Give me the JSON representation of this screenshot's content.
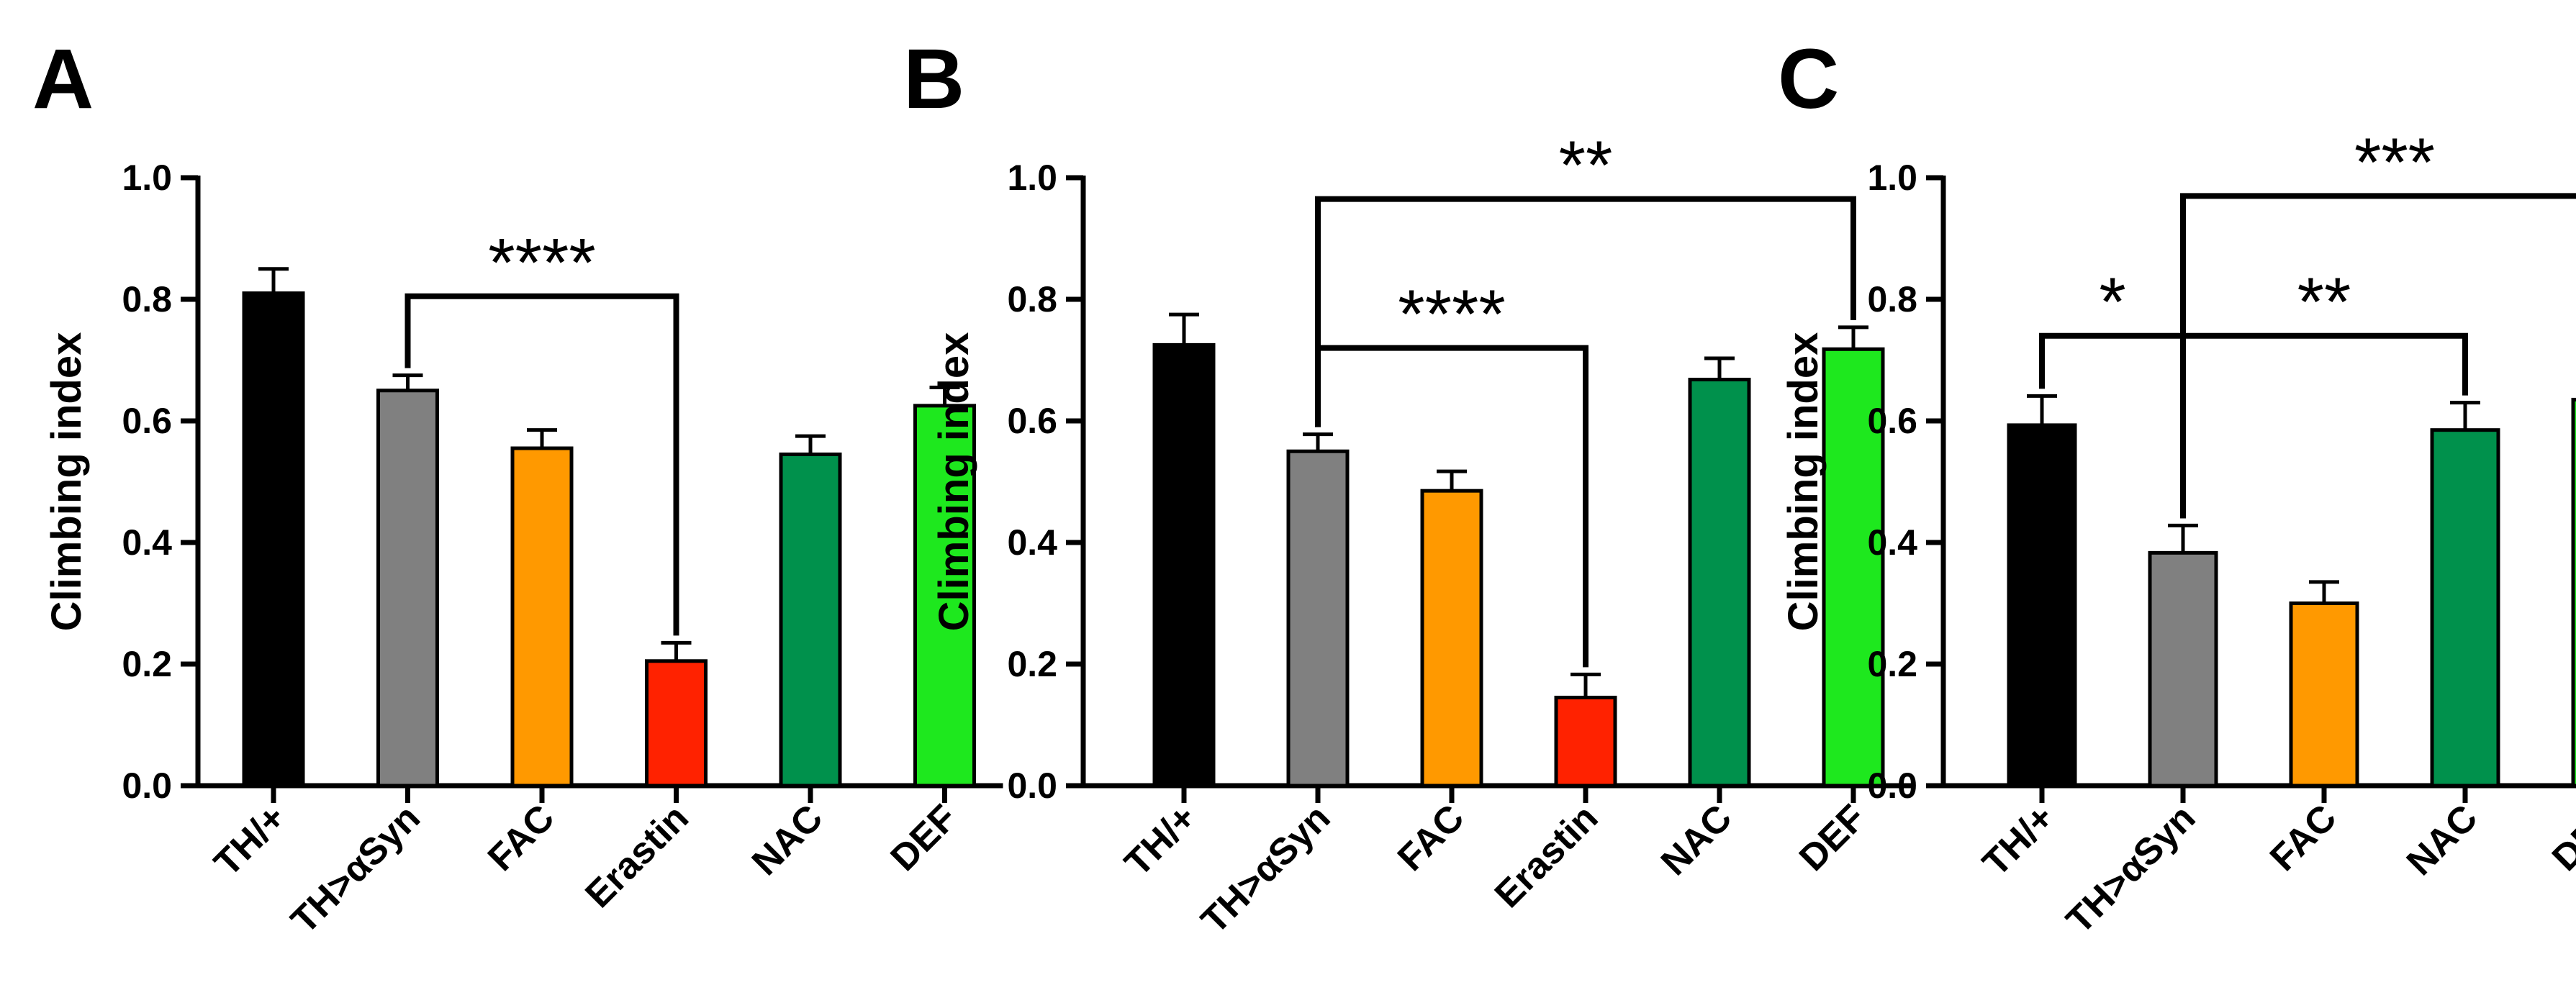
{
  "chart_data": [
    {
      "type": "bar",
      "panel_label": "A",
      "ylabel": "Climbing index",
      "ylim": [
        0,
        1.0
      ],
      "yticks": [
        "0.0",
        "0.2",
        "0.4",
        "0.6",
        "0.8",
        "1.0"
      ],
      "categories": [
        "TH/+",
        "TH>αSyn",
        "FAC",
        "Erastin",
        "NAC",
        "DEF"
      ],
      "values": [
        0.81,
        0.65,
        0.555,
        0.205,
        0.545,
        0.625
      ],
      "errors": [
        0.04,
        0.025,
        0.03,
        0.03,
        0.03,
        0.03
      ],
      "colors": [
        "#000000",
        "#808080",
        "#FF9900",
        "#FF2200",
        "#00914C",
        "#1EE81E"
      ],
      "significance": [
        {
          "from": 1,
          "to": 3,
          "label": "****",
          "level": 0.805
        }
      ]
    },
    {
      "type": "bar",
      "panel_label": "B",
      "ylabel": "Climbing index",
      "ylim": [
        0,
        1.0
      ],
      "yticks": [
        "0.0",
        "0.2",
        "0.4",
        "0.6",
        "0.8",
        "1.0"
      ],
      "categories": [
        "TH/+",
        "TH>αSyn",
        "FAC",
        "Erastin",
        "NAC",
        "DEF"
      ],
      "values": [
        0.725,
        0.55,
        0.485,
        0.145,
        0.668,
        0.718
      ],
      "errors": [
        0.05,
        0.028,
        0.032,
        0.038,
        0.035,
        0.036
      ],
      "colors": [
        "#000000",
        "#808080",
        "#FF9900",
        "#FF2200",
        "#00914C",
        "#1EE81E"
      ],
      "significance": [
        {
          "from": 1,
          "to": 5,
          "label": "**",
          "level": 0.965
        },
        {
          "from": 1,
          "to": 3,
          "label": "****",
          "level": 0.72
        }
      ]
    },
    {
      "type": "bar",
      "panel_label": "C",
      "ylabel": "Climbing index",
      "ylim": [
        0,
        1.0
      ],
      "yticks": [
        "0.0",
        "0.2",
        "0.4",
        "0.6",
        "0.8",
        "1.0"
      ],
      "categories": [
        "TH/+",
        "TH>αSyn",
        "FAC",
        "NAC",
        "DEF"
      ],
      "values": [
        0.593,
        0.383,
        0.3,
        0.585,
        0.635
      ],
      "errors": [
        0.048,
        0.045,
        0.035,
        0.045,
        0.04
      ],
      "colors": [
        "#000000",
        "#808080",
        "#FF9900",
        "#00914C",
        "#1EE81E"
      ],
      "significance": [
        {
          "from": 0,
          "to": 1,
          "label": "*",
          "level": 0.74
        },
        {
          "from": 1,
          "to": 3,
          "label": "**",
          "level": 0.74
        },
        {
          "from": 1,
          "to": 4,
          "label": "***",
          "level": 0.97
        }
      ]
    }
  ]
}
